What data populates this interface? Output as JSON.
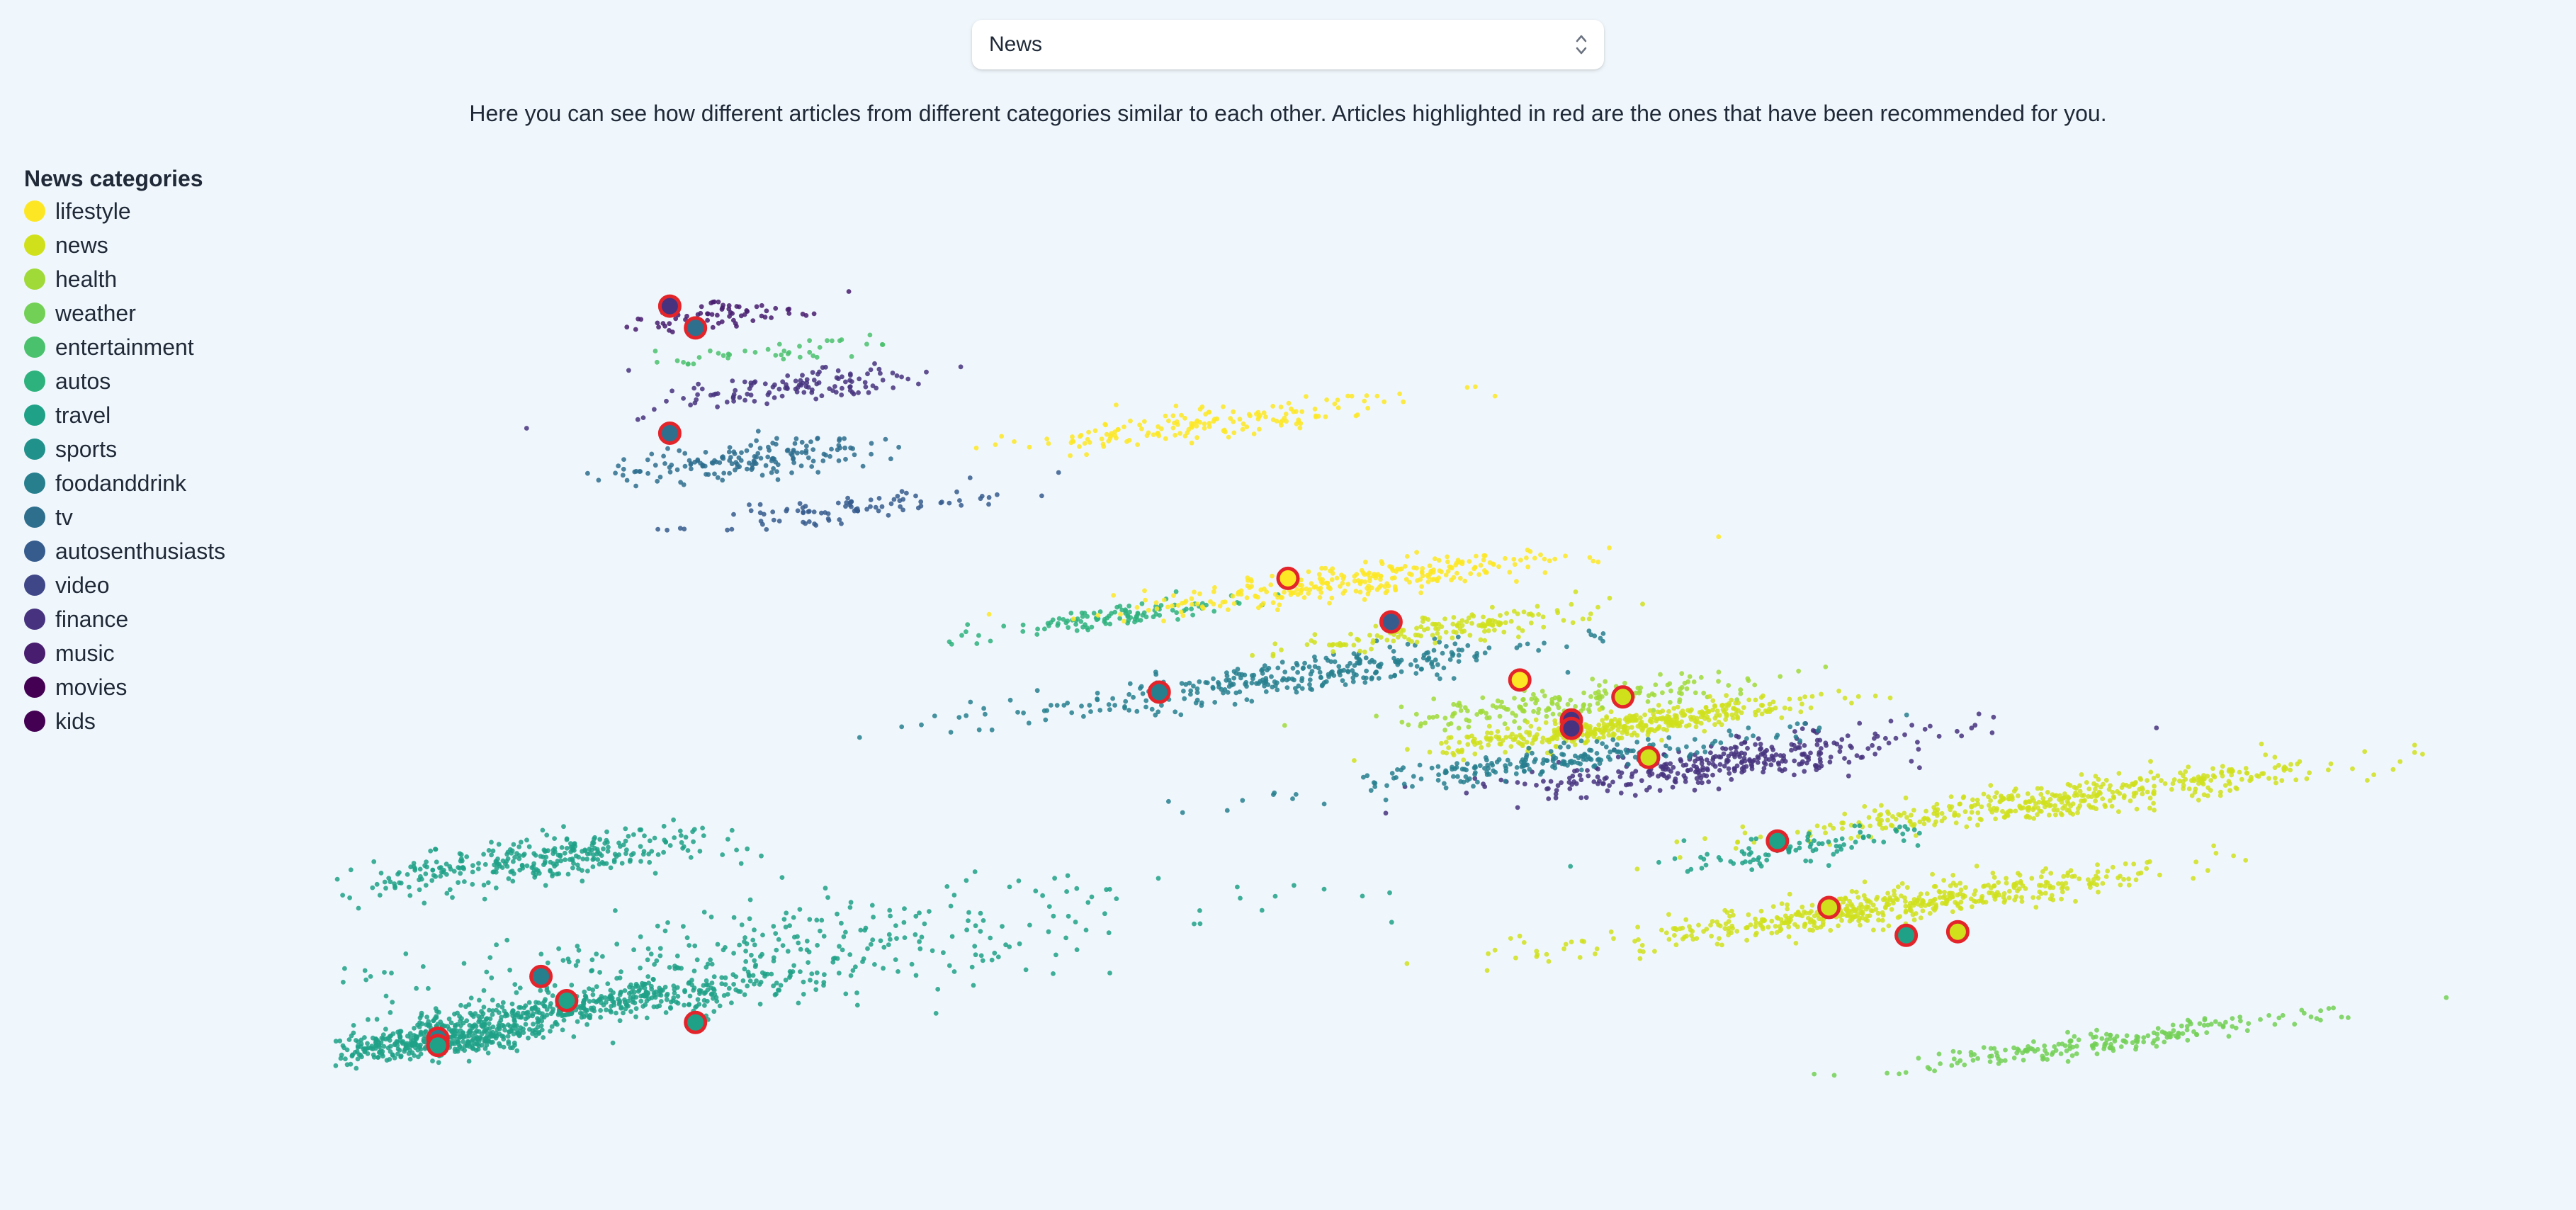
{
  "select": {
    "value": "News",
    "options": [
      "News"
    ]
  },
  "description": "Here you can see how different articles from different categories similar to each other. Articles highlighted in red are the ones that have been recommended for you.",
  "legend": {
    "title": "News categories",
    "items": [
      {
        "label": "lifestyle",
        "color": "#fde725"
      },
      {
        "label": "news",
        "color": "#d0e11c"
      },
      {
        "label": "health",
        "color": "#a0da39"
      },
      {
        "label": "weather",
        "color": "#73d056"
      },
      {
        "label": "entertainment",
        "color": "#4ac16d"
      },
      {
        "label": "autos",
        "color": "#2db27d"
      },
      {
        "label": "travel",
        "color": "#1fa187"
      },
      {
        "label": "sports",
        "color": "#21918c"
      },
      {
        "label": "foodanddrink",
        "color": "#277f8e"
      },
      {
        "label": "tv",
        "color": "#2e6f8e"
      },
      {
        "label": "autosenthusiasts",
        "color": "#365c8d"
      },
      {
        "label": "video",
        "color": "#3f4788"
      },
      {
        "label": "finance",
        "color": "#46327e"
      },
      {
        "label": "music",
        "color": "#481c6e"
      },
      {
        "label": "movies",
        "color": "#440154"
      },
      {
        "label": "kids",
        "color": "#440154"
      }
    ]
  },
  "highlight_color": "#e3252b",
  "chart_data": {
    "type": "scatter",
    "title": "",
    "xlabel": "",
    "ylabel": "",
    "grid": false,
    "legend_position": "left",
    "clusters": [
      {
        "category": "music",
        "x": 0.28,
        "y": 0.74,
        "sx": 0.01,
        "sy": 0.012,
        "n": 70
      },
      {
        "category": "finance",
        "x": 0.31,
        "y": 0.68,
        "sx": 0.014,
        "sy": 0.014,
        "n": 120
      },
      {
        "category": "entertainment",
        "x": 0.3,
        "y": 0.71,
        "sx": 0.012,
        "sy": 0.01,
        "n": 40
      },
      {
        "category": "tv",
        "x": 0.29,
        "y": 0.62,
        "sx": 0.012,
        "sy": 0.014,
        "n": 160
      },
      {
        "category": "autosenthusiasts",
        "x": 0.33,
        "y": 0.58,
        "sx": 0.016,
        "sy": 0.01,
        "n": 90
      },
      {
        "category": "lifestyle",
        "x": 0.47,
        "y": 0.65,
        "sx": 0.018,
        "sy": 0.012,
        "n": 160
      },
      {
        "category": "autos",
        "x": 0.43,
        "y": 0.49,
        "sx": 0.014,
        "sy": 0.008,
        "n": 110
      },
      {
        "category": "foodanddrink",
        "x": 0.5,
        "y": 0.44,
        "sx": 0.028,
        "sy": 0.014,
        "n": 320
      },
      {
        "category": "lifestyle",
        "x": 0.53,
        "y": 0.52,
        "sx": 0.022,
        "sy": 0.012,
        "n": 280
      },
      {
        "category": "news",
        "x": 0.56,
        "y": 0.48,
        "sx": 0.016,
        "sy": 0.01,
        "n": 150
      },
      {
        "category": "health",
        "x": 0.61,
        "y": 0.42,
        "sx": 0.018,
        "sy": 0.012,
        "n": 180
      },
      {
        "category": "news",
        "x": 0.63,
        "y": 0.4,
        "sx": 0.018,
        "sy": 0.01,
        "n": 420
      },
      {
        "category": "finance",
        "x": 0.67,
        "y": 0.37,
        "sx": 0.022,
        "sy": 0.016,
        "n": 340
      },
      {
        "category": "foodanddrink",
        "x": 0.6,
        "y": 0.37,
        "sx": 0.024,
        "sy": 0.01,
        "n": 220
      },
      {
        "category": "news",
        "x": 0.8,
        "y": 0.34,
        "sx": 0.03,
        "sy": 0.012,
        "n": 420
      },
      {
        "category": "news",
        "x": 0.73,
        "y": 0.25,
        "sx": 0.028,
        "sy": 0.012,
        "n": 500
      },
      {
        "category": "travel",
        "x": 0.7,
        "y": 0.3,
        "sx": 0.012,
        "sy": 0.012,
        "n": 90
      },
      {
        "category": "weather",
        "x": 0.82,
        "y": 0.14,
        "sx": 0.022,
        "sy": 0.008,
        "n": 200
      },
      {
        "category": "travel",
        "x": 0.17,
        "y": 0.14,
        "sx": 0.012,
        "sy": 0.012,
        "n": 420
      },
      {
        "category": "travel",
        "x": 0.23,
        "y": 0.17,
        "sx": 0.02,
        "sy": 0.012,
        "n": 420
      },
      {
        "category": "travel",
        "x": 0.21,
        "y": 0.29,
        "sx": 0.018,
        "sy": 0.018,
        "n": 320
      },
      {
        "category": "travel",
        "x": 0.3,
        "y": 0.21,
        "sx": 0.04,
        "sy": 0.04,
        "n": 320
      }
    ],
    "recommended": [
      {
        "x": 0.26,
        "y": 0.747,
        "category": "finance"
      },
      {
        "x": 0.27,
        "y": 0.729,
        "category": "tv"
      },
      {
        "x": 0.26,
        "y": 0.642,
        "category": "tv"
      },
      {
        "x": 0.5,
        "y": 0.522,
        "category": "lifestyle"
      },
      {
        "x": 0.54,
        "y": 0.486,
        "category": "autosenthusiasts"
      },
      {
        "x": 0.45,
        "y": 0.428,
        "category": "foodanddrink"
      },
      {
        "x": 0.59,
        "y": 0.438,
        "category": "lifestyle"
      },
      {
        "x": 0.63,
        "y": 0.424,
        "category": "news"
      },
      {
        "x": 0.61,
        "y": 0.405,
        "category": "finance"
      },
      {
        "x": 0.61,
        "y": 0.398,
        "category": "finance"
      },
      {
        "x": 0.64,
        "y": 0.374,
        "category": "news"
      },
      {
        "x": 0.69,
        "y": 0.305,
        "category": "travel"
      },
      {
        "x": 0.71,
        "y": 0.25,
        "category": "news"
      },
      {
        "x": 0.74,
        "y": 0.227,
        "category": "travel"
      },
      {
        "x": 0.76,
        "y": 0.23,
        "category": "news"
      },
      {
        "x": 0.21,
        "y": 0.193,
        "category": "foodanddrink"
      },
      {
        "x": 0.22,
        "y": 0.173,
        "category": "travel"
      },
      {
        "x": 0.27,
        "y": 0.155,
        "category": "travel"
      },
      {
        "x": 0.17,
        "y": 0.142,
        "category": "foodanddrink"
      },
      {
        "x": 0.17,
        "y": 0.136,
        "category": "travel"
      }
    ]
  }
}
